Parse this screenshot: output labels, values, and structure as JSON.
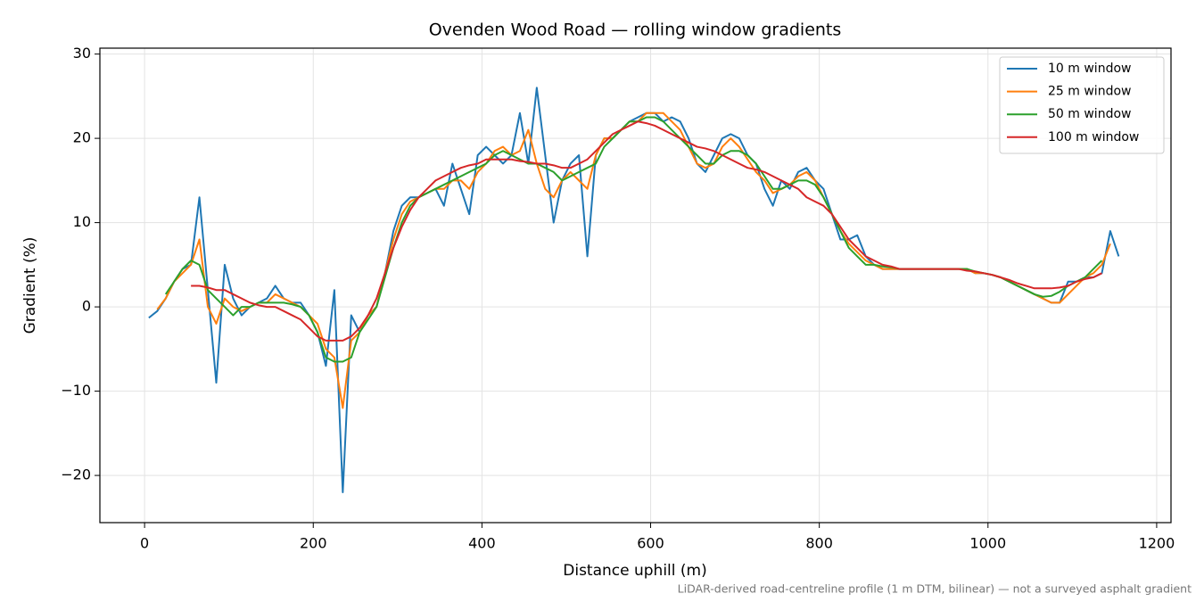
{
  "chart_data": {
    "type": "line",
    "title": "Ovenden Wood Road — rolling window gradients",
    "x_label": "Distance uphill (m)",
    "y_label": "Gradient (%)",
    "footnote": "LiDAR-derived road-centreline profile (1 m DTM, bilinear) — not a surveyed asphalt gradient",
    "xlim": [
      -53,
      1217
    ],
    "ylim": [
      -25.6,
      30.7
    ],
    "xticks": [
      0,
      200,
      400,
      600,
      800,
      1000,
      1200
    ],
    "yticks": [
      {
        "value": -20,
        "label": "−20"
      },
      {
        "value": -10,
        "label": "−10"
      },
      0,
      10,
      20,
      30
    ],
    "grid": true,
    "legend": "upper right",
    "x": [
      5,
      15,
      25,
      35,
      45,
      55,
      65,
      75,
      85,
      95,
      105,
      115,
      125,
      135,
      145,
      155,
      165,
      175,
      185,
      195,
      205,
      215,
      225,
      235,
      245,
      255,
      265,
      275,
      285,
      295,
      305,
      315,
      325,
      335,
      345,
      355,
      365,
      375,
      385,
      395,
      405,
      415,
      425,
      435,
      445,
      455,
      465,
      475,
      485,
      495,
      505,
      515,
      525,
      535,
      545,
      555,
      565,
      575,
      585,
      595,
      605,
      615,
      625,
      635,
      645,
      655,
      665,
      675,
      685,
      695,
      705,
      715,
      725,
      735,
      745,
      755,
      765,
      775,
      785,
      795,
      805,
      815,
      825,
      835,
      845,
      855,
      865,
      875,
      885,
      895,
      905,
      915,
      925,
      935,
      945,
      955,
      965,
      975,
      985,
      995,
      1005,
      1015,
      1025,
      1035,
      1045,
      1055,
      1065,
      1075,
      1085,
      1095,
      1105,
      1115,
      1125,
      1135,
      1145,
      1155
    ],
    "series": [
      {
        "name": "10 m window",
        "color": "#1f77b4",
        "values": [
          -1.3,
          -0.5,
          1,
          3,
          4.5,
          5,
          13,
          2,
          -9,
          5,
          1,
          -1,
          0,
          0.5,
          1,
          2.5,
          1,
          0.5,
          0.5,
          -1,
          -3,
          -7,
          2,
          -22,
          -1,
          -3,
          -1,
          0,
          4,
          9,
          12,
          13,
          13,
          13.5,
          14,
          12,
          17,
          14,
          11,
          18,
          19,
          18,
          17,
          18,
          23,
          17,
          26,
          18,
          10,
          15,
          17,
          18,
          6,
          18,
          20,
          20,
          21,
          22,
          22.5,
          23,
          23,
          22,
          22.5,
          22,
          20,
          17,
          16,
          18,
          20,
          20.5,
          20,
          18,
          17,
          14,
          12,
          15,
          14,
          16,
          16.5,
          15,
          14,
          11,
          8,
          8,
          8.5,
          6,
          5,
          4.5,
          4.5,
          4.5,
          4.5,
          4.5,
          4.5,
          4.5,
          4.5,
          4.5,
          4.5,
          4.5,
          4,
          4,
          3.8,
          3.5,
          3,
          2.5,
          2,
          1.5,
          1,
          0.5,
          0.5,
          3,
          3,
          3.5,
          3.5,
          4,
          9,
          6
        ]
      },
      {
        "name": "25 m window",
        "color": "#ff7f0e",
        "values": [
          null,
          -0.3,
          1,
          3,
          4,
          5,
          8,
          0,
          -2,
          1,
          0,
          -0.5,
          0,
          0.5,
          0.5,
          1.5,
          1,
          0.5,
          0,
          -1,
          -2,
          -5,
          -6,
          -12,
          -4,
          -3,
          -1,
          0,
          4,
          8,
          11,
          12.5,
          13,
          13.5,
          14,
          14,
          15,
          15,
          14,
          16,
          17,
          18.5,
          19,
          18,
          18.5,
          21,
          17,
          14,
          13,
          15,
          16,
          15,
          14,
          18,
          20,
          20,
          21,
          22,
          22,
          23,
          23,
          23,
          22,
          21,
          19,
          17,
          16.5,
          17,
          19,
          20,
          19,
          17.5,
          16,
          15,
          13.5,
          14,
          14.5,
          15.5,
          16,
          15,
          13,
          11,
          9,
          7.5,
          6.5,
          5.5,
          5,
          4.5,
          4.5,
          4.5,
          4.5,
          4.5,
          4.5,
          4.5,
          4.5,
          4.5,
          4.5,
          4.5,
          4,
          4,
          3.8,
          3.5,
          3,
          2.5,
          2,
          1.5,
          1,
          0.5,
          0.5,
          1.5,
          2.5,
          3.5,
          4,
          5,
          7.5,
          null
        ]
      },
      {
        "name": "50 m window",
        "color": "#2ca02c",
        "values": [
          null,
          null,
          1.5,
          3,
          4.5,
          5.5,
          5,
          2,
          1,
          0,
          -1,
          0,
          0,
          0.5,
          0.5,
          0.5,
          0.5,
          0.3,
          0,
          -1,
          -3,
          -6,
          -6.5,
          -6.5,
          -6,
          -3,
          -1.5,
          0,
          3.5,
          7,
          10,
          12,
          13,
          13.5,
          14,
          14.5,
          15,
          15.5,
          16,
          16.5,
          17,
          18,
          18.5,
          18,
          17.5,
          17,
          17,
          16.5,
          16,
          15,
          15.5,
          16,
          16.5,
          17,
          19,
          20,
          21,
          22,
          22,
          22.5,
          22.5,
          22,
          21,
          20,
          19,
          18,
          17,
          17,
          18,
          18.5,
          18.5,
          18,
          17,
          15.5,
          14,
          14,
          14.5,
          15,
          15,
          14.5,
          13,
          11,
          9,
          7,
          6,
          5,
          5,
          4.8,
          4.7,
          4.5,
          4.5,
          4.5,
          4.5,
          4.5,
          4.5,
          4.5,
          4.5,
          4.5,
          4.2,
          4,
          3.8,
          3.5,
          3,
          2.5,
          2,
          1.5,
          1.2,
          1.3,
          1.8,
          2.5,
          3,
          3.5,
          4.5,
          5.5,
          null,
          null
        ]
      },
      {
        "name": "100 m window",
        "color": "#d62728",
        "values": [
          null,
          null,
          null,
          null,
          null,
          2.5,
          2.5,
          2.3,
          2,
          2,
          1.5,
          1,
          0.5,
          0.2,
          0,
          0,
          -0.5,
          -1,
          -1.5,
          -2.5,
          -3.5,
          -4,
          -4,
          -4,
          -3.5,
          -2.5,
          -1,
          1,
          4,
          7,
          9.5,
          11.5,
          13,
          14,
          15,
          15.5,
          16,
          16.5,
          16.8,
          17,
          17.5,
          17.5,
          17.5,
          17.5,
          17.3,
          17.2,
          17,
          17,
          16.8,
          16.5,
          16.5,
          17,
          17.5,
          18.5,
          19.5,
          20.5,
          21,
          21.5,
          22,
          21.8,
          21.5,
          21,
          20.5,
          20,
          19.5,
          19,
          18.8,
          18.5,
          18,
          17.5,
          17,
          16.5,
          16.3,
          16,
          15.5,
          15,
          14.5,
          14,
          13,
          12.5,
          12,
          11,
          9.5,
          8,
          7,
          6,
          5.5,
          5,
          4.8,
          4.5,
          4.5,
          4.5,
          4.5,
          4.5,
          4.5,
          4.5,
          4.5,
          4.3,
          4.2,
          4,
          3.8,
          3.5,
          3.2,
          2.8,
          2.5,
          2.2,
          2.2,
          2.2,
          2.3,
          2.5,
          3,
          3.3,
          3.5,
          4,
          null,
          null
        ]
      }
    ]
  }
}
